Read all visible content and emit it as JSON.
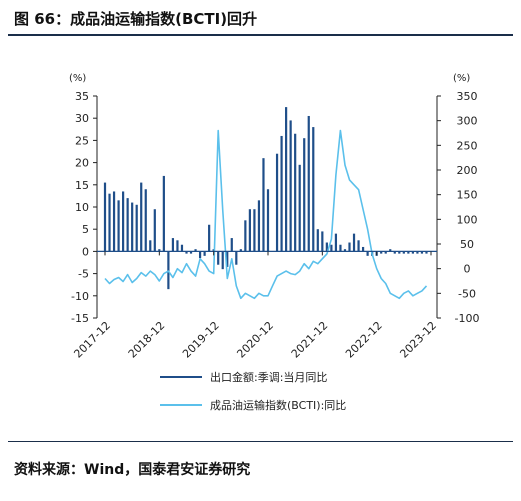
{
  "header": {
    "title": "图 66：成品油运输指数(BCTI)回升"
  },
  "footer": {
    "source": "资料来源：Wind，国泰君安证券研究"
  },
  "chart_data": {
    "type": "bar+line",
    "left_axis": {
      "unit": "(%)",
      "ylim": [
        -15,
        35
      ],
      "ticks": [
        35,
        30,
        25,
        20,
        15,
        10,
        5,
        0,
        -5,
        -10,
        -15
      ]
    },
    "right_axis": {
      "unit": "(%)",
      "ylim": [
        -100,
        350
      ],
      "ticks": [
        350,
        300,
        250,
        200,
        150,
        100,
        50,
        0,
        -50,
        -100
      ]
    },
    "x_ticks": [
      "2017-12",
      "2018-12",
      "2019-12",
      "2020-12",
      "2021-12",
      "2022-12",
      "2023-12"
    ],
    "series": [
      {
        "name": "出口金额:季调:当月同比",
        "kind": "bar",
        "axis": "left",
        "color": "#1f4e89",
        "values": [
          {
            "x": "2017-12",
            "y": 15.5
          },
          {
            "x": "2018-01",
            "y": 13.0
          },
          {
            "x": "2018-02",
            "y": 13.5
          },
          {
            "x": "2018-03",
            "y": 11.5
          },
          {
            "x": "2018-04",
            "y": 13.5
          },
          {
            "x": "2018-05",
            "y": 12.0
          },
          {
            "x": "2018-06",
            "y": 11.0
          },
          {
            "x": "2018-07",
            "y": 10.5
          },
          {
            "x": "2018-08",
            "y": 15.5
          },
          {
            "x": "2018-09",
            "y": 14.0
          },
          {
            "x": "2018-10",
            "y": 2.5
          },
          {
            "x": "2018-11",
            "y": 9.5
          },
          {
            "x": "2018-12",
            "y": 0.5
          },
          {
            "x": "2019-01",
            "y": 17.0
          },
          {
            "x": "2019-02",
            "y": -8.5
          },
          {
            "x": "2019-03",
            "y": 3.0
          },
          {
            "x": "2019-04",
            "y": 2.5
          },
          {
            "x": "2019-05",
            "y": 1.5
          },
          {
            "x": "2019-06",
            "y": -0.5
          },
          {
            "x": "2019-07",
            "y": -0.5
          },
          {
            "x": "2019-08",
            "y": 0.5
          },
          {
            "x": "2019-09",
            "y": -1.5
          },
          {
            "x": "2019-10",
            "y": -1.0
          },
          {
            "x": "2019-11",
            "y": 6.0
          },
          {
            "x": "2019-12",
            "y": 0.5
          },
          {
            "x": "2020-01",
            "y": -3.0
          },
          {
            "x": "2020-02",
            "y": -4.0
          },
          {
            "x": "2020-03",
            "y": -3.5
          },
          {
            "x": "2020-04",
            "y": 3.0
          },
          {
            "x": "2020-05",
            "y": -3.0
          },
          {
            "x": "2020-06",
            "y": 0.5
          },
          {
            "x": "2020-07",
            "y": 7.0
          },
          {
            "x": "2020-08",
            "y": 9.5
          },
          {
            "x": "2020-09",
            "y": 9.5
          },
          {
            "x": "2020-10",
            "y": 11.5
          },
          {
            "x": "2020-11",
            "y": 21.0
          },
          {
            "x": "2020-12",
            "y": 14.0
          },
          {
            "x": "2021-01",
            "y": 0.0
          },
          {
            "x": "2021-02",
            "y": 22.0
          },
          {
            "x": "2021-03",
            "y": 26.0
          },
          {
            "x": "2021-04",
            "y": 32.5
          },
          {
            "x": "2021-05",
            "y": 29.5
          },
          {
            "x": "2021-06",
            "y": 26.5
          },
          {
            "x": "2021-07",
            "y": 19.5
          },
          {
            "x": "2021-08",
            "y": 25.5
          },
          {
            "x": "2021-09",
            "y": 30.5
          },
          {
            "x": "2021-10",
            "y": 28.0
          },
          {
            "x": "2021-11",
            "y": 5.0
          },
          {
            "x": "2021-12",
            "y": 4.5
          },
          {
            "x": "2022-01",
            "y": 2.0
          },
          {
            "x": "2022-02",
            "y": 1.5
          },
          {
            "x": "2022-03",
            "y": 4.0
          },
          {
            "x": "2022-04",
            "y": 1.5
          },
          {
            "x": "2022-05",
            "y": 0.5
          },
          {
            "x": "2022-06",
            "y": 2.0
          },
          {
            "x": "2022-07",
            "y": 4.0
          },
          {
            "x": "2022-08",
            "y": 2.5
          },
          {
            "x": "2022-09",
            "y": 1.0
          },
          {
            "x": "2022-10",
            "y": -1.0
          },
          {
            "x": "2022-11",
            "y": -1.0
          },
          {
            "x": "2022-12",
            "y": -1.0
          },
          {
            "x": "2023-01",
            "y": -0.5
          },
          {
            "x": "2023-02",
            "y": -0.5
          },
          {
            "x": "2023-03",
            "y": 0.5
          },
          {
            "x": "2023-04",
            "y": -0.5
          },
          {
            "x": "2023-05",
            "y": -0.5
          },
          {
            "x": "2023-06",
            "y": -0.5
          },
          {
            "x": "2023-07",
            "y": -0.5
          },
          {
            "x": "2023-08",
            "y": -0.5
          },
          {
            "x": "2023-09",
            "y": -0.5
          },
          {
            "x": "2023-10",
            "y": -0.5
          },
          {
            "x": "2023-11",
            "y": -0.5
          }
        ]
      },
      {
        "name": "成品油运输指数(BCTI):同比",
        "kind": "line",
        "axis": "right",
        "color": "#5bc0eb",
        "values": [
          {
            "x": "2017-12",
            "y": -20
          },
          {
            "x": "2018-01",
            "y": -30
          },
          {
            "x": "2018-02",
            "y": -22
          },
          {
            "x": "2018-03",
            "y": -18
          },
          {
            "x": "2018-04",
            "y": -26
          },
          {
            "x": "2018-05",
            "y": -12
          },
          {
            "x": "2018-06",
            "y": -28
          },
          {
            "x": "2018-07",
            "y": -20
          },
          {
            "x": "2018-08",
            "y": -8
          },
          {
            "x": "2018-09",
            "y": -15
          },
          {
            "x": "2018-10",
            "y": -5
          },
          {
            "x": "2018-11",
            "y": -12
          },
          {
            "x": "2018-12",
            "y": -25
          },
          {
            "x": "2019-01",
            "y": -10
          },
          {
            "x": "2019-02",
            "y": -5
          },
          {
            "x": "2019-03",
            "y": -18
          },
          {
            "x": "2019-04",
            "y": 0
          },
          {
            "x": "2019-05",
            "y": -8
          },
          {
            "x": "2019-06",
            "y": 10
          },
          {
            "x": "2019-07",
            "y": -5
          },
          {
            "x": "2019-08",
            "y": -15
          },
          {
            "x": "2019-09",
            "y": 20
          },
          {
            "x": "2019-10",
            "y": 10
          },
          {
            "x": "2019-11",
            "y": -5
          },
          {
            "x": "2019-12",
            "y": -10
          },
          {
            "x": "2020-01",
            "y": 280
          },
          {
            "x": "2020-02",
            "y": 120
          },
          {
            "x": "2020-03",
            "y": -20
          },
          {
            "x": "2020-04",
            "y": 20
          },
          {
            "x": "2020-05",
            "y": -35
          },
          {
            "x": "2020-06",
            "y": -60
          },
          {
            "x": "2020-07",
            "y": -50
          },
          {
            "x": "2020-08",
            "y": -55
          },
          {
            "x": "2020-09",
            "y": -60
          },
          {
            "x": "2020-10",
            "y": -50
          },
          {
            "x": "2020-11",
            "y": -55
          },
          {
            "x": "2020-12",
            "y": -55
          },
          {
            "x": "2021-01",
            "y": -35
          },
          {
            "x": "2021-02",
            "y": -15
          },
          {
            "x": "2021-03",
            "y": -10
          },
          {
            "x": "2021-04",
            "y": -5
          },
          {
            "x": "2021-05",
            "y": -10
          },
          {
            "x": "2021-06",
            "y": -12
          },
          {
            "x": "2021-07",
            "y": -5
          },
          {
            "x": "2021-08",
            "y": 10
          },
          {
            "x": "2021-09",
            "y": 0
          },
          {
            "x": "2021-10",
            "y": 15
          },
          {
            "x": "2021-11",
            "y": 10
          },
          {
            "x": "2021-12",
            "y": 20
          },
          {
            "x": "2022-01",
            "y": 30
          },
          {
            "x": "2022-02",
            "y": 60
          },
          {
            "x": "2022-03",
            "y": 190
          },
          {
            "x": "2022-04",
            "y": 280
          },
          {
            "x": "2022-05",
            "y": 210
          },
          {
            "x": "2022-06",
            "y": 180
          },
          {
            "x": "2022-07",
            "y": 170
          },
          {
            "x": "2022-08",
            "y": 160
          },
          {
            "x": "2022-09",
            "y": 120
          },
          {
            "x": "2022-10",
            "y": 80
          },
          {
            "x": "2022-11",
            "y": 30
          },
          {
            "x": "2022-12",
            "y": 0
          },
          {
            "x": "2023-01",
            "y": -20
          },
          {
            "x": "2023-02",
            "y": -30
          },
          {
            "x": "2023-03",
            "y": -50
          },
          {
            "x": "2023-04",
            "y": -55
          },
          {
            "x": "2023-05",
            "y": -60
          },
          {
            "x": "2023-06",
            "y": -50
          },
          {
            "x": "2023-07",
            "y": -45
          },
          {
            "x": "2023-08",
            "y": -55
          },
          {
            "x": "2023-09",
            "y": -50
          },
          {
            "x": "2023-10",
            "y": -45
          },
          {
            "x": "2023-11",
            "y": -35
          }
        ]
      }
    ],
    "legend_position": "bottom",
    "grid": false
  }
}
